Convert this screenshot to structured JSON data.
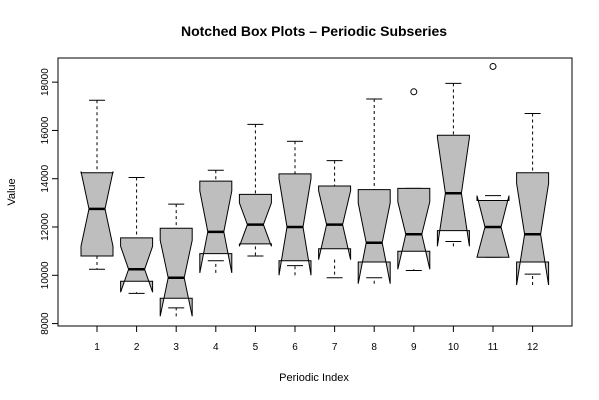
{
  "chart_data": {
    "type": "boxplot",
    "notched": true,
    "title": "Notched Box Plots – Periodic Subseries",
    "xlabel": "Periodic Index",
    "ylabel": "Value",
    "x_categories": [
      "1",
      "2",
      "3",
      "4",
      "5",
      "6",
      "7",
      "8",
      "9",
      "10",
      "11",
      "12"
    ],
    "y_ticks": [
      8000,
      10000,
      12000,
      14000,
      16000,
      18000
    ],
    "ylim": [
      7900,
      19000
    ],
    "box_fill": "#bebebe",
    "series": [
      {
        "category": "1",
        "whisker_low": 10250,
        "q1": 10800,
        "median": 12750,
        "q3": 14250,
        "whisker_high": 17250,
        "notch_low": 11200,
        "notch_high": 14300,
        "outliers": []
      },
      {
        "category": "2",
        "whisker_low": 9250,
        "q1": 9750,
        "median": 10250,
        "q3": 11550,
        "whisker_high": 14050,
        "notch_low": 9300,
        "notch_high": 11200,
        "outliers": []
      },
      {
        "category": "3",
        "whisker_low": 8650,
        "q1": 9050,
        "median": 9900,
        "q3": 11950,
        "whisker_high": 12950,
        "notch_low": 8300,
        "notch_high": 11450,
        "outliers": []
      },
      {
        "category": "4",
        "whisker_low": 10600,
        "q1": 10900,
        "median": 11800,
        "q3": 13900,
        "whisker_high": 14350,
        "notch_low": 10100,
        "notch_high": 13500,
        "outliers": []
      },
      {
        "category": "5",
        "whisker_low": 10800,
        "q1": 11300,
        "median": 12100,
        "q3": 13350,
        "whisker_high": 16250,
        "notch_low": 11200,
        "notch_high": 13000,
        "outliers": []
      },
      {
        "category": "6",
        "whisker_low": 10400,
        "q1": 10600,
        "median": 12000,
        "q3": 14200,
        "whisker_high": 15550,
        "notch_low": 10000,
        "notch_high": 14000,
        "outliers": []
      },
      {
        "category": "7",
        "whisker_low": 9900,
        "q1": 11100,
        "median": 12100,
        "q3": 13700,
        "whisker_high": 14750,
        "notch_low": 10650,
        "notch_high": 13500,
        "outliers": []
      },
      {
        "category": "8",
        "whisker_low": 9900,
        "q1": 10550,
        "median": 11350,
        "q3": 13550,
        "whisker_high": 17300,
        "notch_low": 9650,
        "notch_high": 13000,
        "outliers": []
      },
      {
        "category": "9",
        "whisker_low": 10200,
        "q1": 11000,
        "median": 11700,
        "q3": 13600,
        "whisker_high": 13600,
        "notch_low": 10250,
        "notch_high": 13050,
        "outliers": [
          17600
        ]
      },
      {
        "category": "10",
        "whisker_low": 11400,
        "q1": 11850,
        "median": 13400,
        "q3": 15800,
        "whisker_high": 17950,
        "notch_low": 11200,
        "notch_high": 15700,
        "outliers": []
      },
      {
        "category": "11",
        "whisker_low": 10750,
        "q1": 10750,
        "median": 12000,
        "q3": 13100,
        "whisker_high": 13300,
        "notch_low": 10750,
        "notch_high": 13300,
        "outliers": [
          18650
        ]
      },
      {
        "category": "12",
        "whisker_low": 10050,
        "q1": 10550,
        "median": 11700,
        "q3": 14250,
        "whisker_high": 16700,
        "notch_low": 9600,
        "notch_high": 13800,
        "outliers": []
      }
    ]
  }
}
